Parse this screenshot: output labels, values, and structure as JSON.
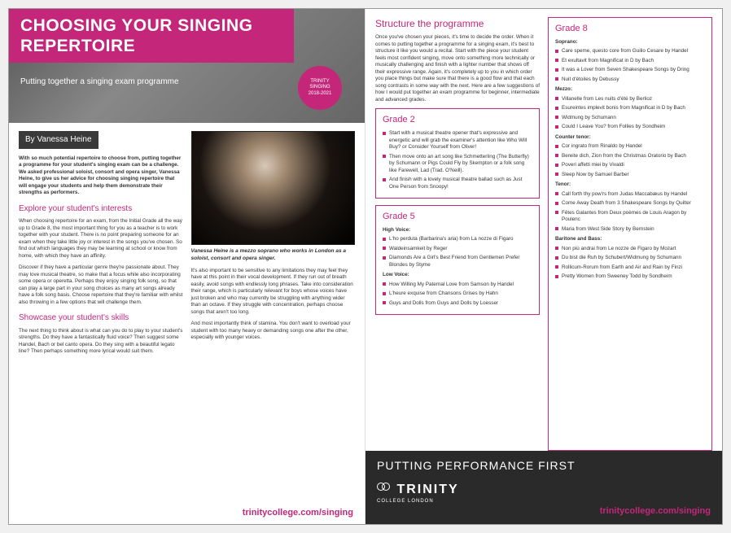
{
  "hero": {
    "title": "CHOOSING YOUR SINGING REPERTOIRE",
    "subtitle": "Putting together a singing exam programme",
    "badge_l1": "TRINITY",
    "badge_l2": "SINGING",
    "badge_l3": "2018-2021"
  },
  "byline": "By Vanessa Heine",
  "intro": "With so much potential repertoire to choose from, putting together a programme for your student's singing exam can be a challenge. We asked professional soloist, consort and opera singer, Vanessa Heine, to give us her advice for choosing singing repertoire that will engage your students and help them demonstrate their strengths as performers.",
  "h1": "Explore your student's interests",
  "p1": "When choosing repertoire for an exam, from the Initial Grade all the way up to Grade 8, the most important thing for you as a teacher is to work together with your student. There is no point preparing someone for an exam when they take little joy or interest in the songs you've chosen. So find out which languages they may be learning at school or know from home, with which they have an affinity.",
  "p2": "Discover if they have a particular genre they're passionate about. They may love musical theatre, so make that a focus while also incorporating some opera or operetta. Perhaps they enjoy singing folk song, so that can play a large part in your song choices as many art songs already have a folk song basis. Choose repertoire that they're familiar with whilst also throwing in a few options that will challenge them.",
  "h2": "Showcase your student's skills",
  "p3": "The next thing to think about is what can you do to play to your student's strengths. Do they have a fantastically fluid voice? Then suggest some Handel, Bach or bel canto opera. Do they sing with a beautiful legato line? Then perhaps something more lyrical would suit them.",
  "caption": "Vanessa Heine is a mezzo soprano who works in London as a soloist, consort and opera singer.",
  "p4": "It's also important to be sensitive to any limitations they may feel they have at this point in their vocal development. If they run out of breath easily, avoid songs with endlessly long phrases. Take into consideration their range, which is particularly relevant for boys whose voices have just broken and who may currently be struggling with anything wider than an octave. If they struggle with concentration, perhaps choose songs that aren't too long.",
  "p5": "And most importantly think of stamina. You don't want to overload your student with too many heavy or demanding songs one after the other, especially with younger voices.",
  "url": "trinitycollege.com/singing",
  "rh1": "Structure the programme",
  "rp1": "Once you've chosen your pieces, it's time to decide the order. When it comes to putting together a programme for a singing exam, it's best to structure it like you would a recital. Start with the piece your student feels most confident singing, move onto something more technically or musically challenging and finish with a lighter number that shows off their expressive range. Again, it's completely up to you in which order you place things but make sure that there is a good flow and that each song contrasts in some way with the next. Here are a few suggestions of how I would put together an exam programme for beginner, intermediate and advanced grades.",
  "g2": {
    "title": "Grade 2",
    "items": [
      "Start with a musical theatre opener that's expressive and energetic and will grab the examiner's attention like Who Will Buy? or Consider Yourself from Oliver!",
      "Then move onto an art song like Schmetterling (The Butterfly) by Schumann or Pigs Could Fly by Skempton or a folk song like Farewell, Lad (Trad. O'Neill).",
      "And finish with a lovely musical theatre ballad such as Just One Person from Snoopy!"
    ]
  },
  "g5": {
    "title": "Grade 5",
    "hv": "High Voice:",
    "hv_items": [
      "L'ho perduta (Barbarina's aria) from La nozze di Figaro",
      "Waldeinsamkeit by Reger",
      "Diamonds Are a Girl's Best Friend from Gentlemen Prefer Blondes by Styme"
    ],
    "lv": "Low Voice:",
    "lv_items": [
      "How Willing My Paternal Love from Samson by Handel",
      "L'heure exquise from Chansons Grises by Hahn",
      "Guys and Dolls from Guys and Dolls by Loesser"
    ]
  },
  "g8": {
    "title": "Grade 8",
    "s1": "Soprano:",
    "s1i": [
      "Care speme, questo core from Guilio Cesare by Handel",
      "Et exultavit from Magnificat in D by Bach",
      "It was a Lover from Seven Shakespeare Songs by Dring",
      "Nuit d'étoiles by Debussy"
    ],
    "s2": "Mezzo:",
    "s2i": [
      "Villanelle from Les nuits d'été by Berlioz",
      "Esureintes implevit bonis from Magnificat in D by Bach",
      "Widmung by Schumann",
      "Could I Leave You? from Follies by Sondheim"
    ],
    "s3": "Counter tenor:",
    "s3i": [
      "Cor ingrato from Rinaldo by Handel",
      "Bereite dich, Zion from the Christmas Oratorio by Bach",
      "Poveri affetti miei by Vivaldi",
      "Sleep Now by Samuel Barber"
    ],
    "s4": "Tenor:",
    "s4i": [
      "Call forth thy pow'rs from Judas Maccabæus by Handel",
      "Come Away Death from 3 Shakespeare Songs by Quilter",
      "Fêtes Galantes from Deux poèmes de Louis Aragon by Poulenc",
      "Maria from West Side Story by Bernstein"
    ],
    "s5": "Baritone and Bass:",
    "s5i": [
      "Non più andrai from Le nozze de Figaro by Mozart",
      "Du bist die Ruh by Schubert/Widmung by Schumann",
      "Rollicum-Rorum from Earth and Air and Rain by Finzi",
      "Pretty Women from Sweeney Todd by Sondheim"
    ]
  },
  "footer": {
    "title": "PUTTING PERFORMANCE FIRST",
    "brand": "TRINITY",
    "brand_sub": "COLLEGE LONDON"
  }
}
